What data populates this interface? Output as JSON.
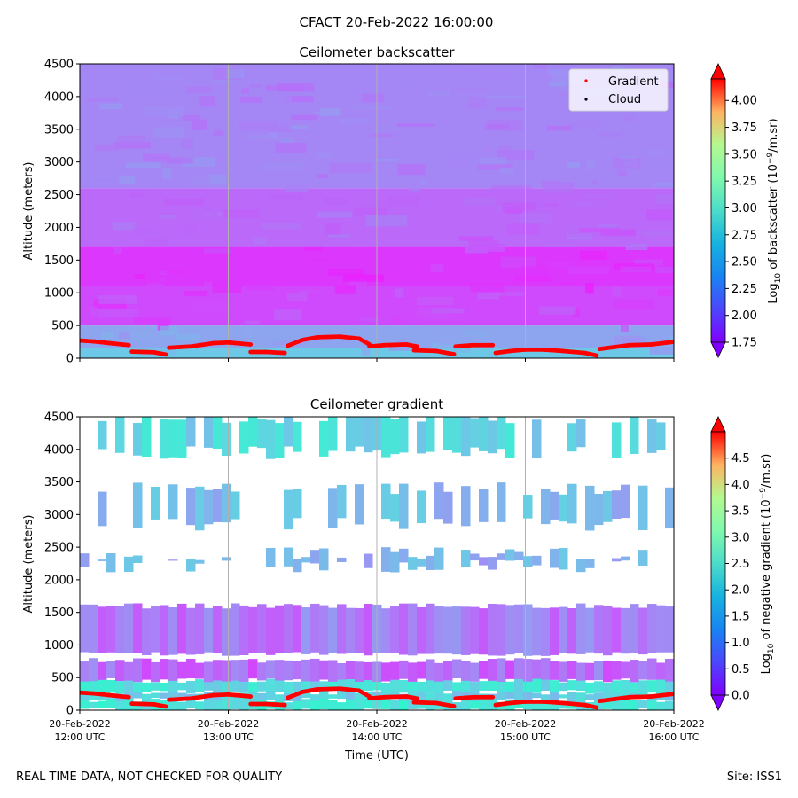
{
  "figure": {
    "title": "CFACT 20-Feb-2022 16:00:00",
    "footer_left": "REAL TIME DATA, NOT CHECKED FOR QUALITY",
    "footer_right": "Site: ISS1",
    "xlabel": "Time (UTC)",
    "time_ticks": [
      {
        "date": "20-Feb-2022",
        "time": "12:00 UTC"
      },
      {
        "date": "20-Feb-2022",
        "time": "13:00 UTC"
      },
      {
        "date": "20-Feb-2022",
        "time": "14:00 UTC"
      },
      {
        "date": "20-Feb-2022",
        "time": "15:00 UTC"
      },
      {
        "date": "20-Feb-2022",
        "time": "16:00 UTC"
      }
    ]
  },
  "colors": {
    "gradient_marker": "#ff0000",
    "cloud_marker": "#000000",
    "grid": "#b0b0b0"
  },
  "chart_data": [
    {
      "type": "heatmap",
      "title": "Ceilometer backscatter",
      "ylabel": "Altitude (meters)",
      "ylim": [
        0,
        4500
      ],
      "yticks": [
        "0",
        "500",
        "1000",
        "1500",
        "2000",
        "2500",
        "3000",
        "3500",
        "4000",
        "4500"
      ],
      "xlim_hours": [
        12,
        16
      ],
      "colorbar": {
        "label_prefix": "Log",
        "label_sub": "10",
        "label_main": " of backscatter (10",
        "label_sup": "−9",
        "label_end": "/m.sr)",
        "range": [
          1.75,
          4.2
        ],
        "ticks": [
          "1.75",
          "2.00",
          "2.25",
          "2.50",
          "2.75",
          "3.00",
          "3.25",
          "3.50",
          "3.75",
          "4.00"
        ]
      },
      "legend": {
        "location": "top-right",
        "entries": [
          {
            "label": "Gradient",
            "color": "#ff0000"
          },
          {
            "label": "Cloud",
            "color": "#000000"
          }
        ]
      },
      "layers": [
        {
          "alt_range": [
            0,
            150
          ],
          "value": 2.45
        },
        {
          "alt_range": [
            150,
            500
          ],
          "value": 2.3
        },
        {
          "alt_range": [
            500,
            1100
          ],
          "value": 1.98
        },
        {
          "alt_range": [
            1100,
            1700
          ],
          "value": 1.92
        },
        {
          "alt_range": [
            1700,
            2600
          ],
          "value": 2.08
        },
        {
          "alt_range": [
            2600,
            4500
          ],
          "value": 2.18
        }
      ]
    },
    {
      "type": "heatmap",
      "title": "Ceilometer gradient",
      "ylabel": "Altitude (meters)",
      "ylim": [
        0,
        4500
      ],
      "yticks": [
        "0",
        "500",
        "1000",
        "1500",
        "2000",
        "2500",
        "3000",
        "3500",
        "4000",
        "4500"
      ],
      "xlim_hours": [
        12,
        16
      ],
      "colorbar": {
        "label_prefix": "Log",
        "label_sub": "10",
        "label_main": " of negative gradient (10",
        "label_sup": "−9",
        "label_end": "/m.sr)",
        "range": [
          0,
          5
        ],
        "ticks": [
          "0.0",
          "0.5",
          "1.0",
          "1.5",
          "2.0",
          "2.5",
          "3.0",
          "3.5",
          "4.0",
          "4.5"
        ]
      },
      "layers": [
        {
          "alt_range": [
            0,
            160
          ],
          "value": 1.8
        },
        {
          "alt_range": [
            160,
            280
          ],
          "value": 1.5
        },
        {
          "alt_range": [
            280,
            460
          ],
          "value": 1.7
        },
        {
          "alt_range": [
            460,
            760
          ],
          "value": 0.7
        },
        {
          "alt_range": [
            860,
            1600
          ],
          "value": 0.8
        },
        {
          "alt_range": [
            2200,
            2400
          ],
          "value": 1.2
        },
        {
          "alt_range": [
            2850,
            3400
          ],
          "value": 1.3
        },
        {
          "alt_range": [
            3950,
            4500
          ],
          "value": 1.6
        }
      ]
    }
  ],
  "gradient_height_series": {
    "unit": "meters",
    "segments": [
      [
        [
          12.0,
          270
        ],
        [
          12.1,
          255
        ],
        [
          12.2,
          230
        ],
        [
          12.33,
          200
        ]
      ],
      [
        [
          12.35,
          100
        ],
        [
          12.5,
          90
        ],
        [
          12.58,
          55
        ]
      ],
      [
        [
          12.6,
          160
        ],
        [
          12.75,
          180
        ],
        [
          12.9,
          230
        ],
        [
          13.0,
          240
        ],
        [
          13.15,
          210
        ]
      ],
      [
        [
          13.15,
          95
        ],
        [
          13.25,
          95
        ],
        [
          13.38,
          80
        ]
      ],
      [
        [
          13.4,
          190
        ],
        [
          13.5,
          280
        ],
        [
          13.6,
          320
        ],
        [
          13.75,
          330
        ],
        [
          13.88,
          300
        ],
        [
          13.95,
          210
        ]
      ],
      [
        [
          13.95,
          180
        ],
        [
          14.05,
          200
        ],
        [
          14.2,
          210
        ],
        [
          14.27,
          180
        ]
      ],
      [
        [
          14.25,
          120
        ],
        [
          14.4,
          110
        ],
        [
          14.52,
          60
        ]
      ],
      [
        [
          14.53,
          180
        ],
        [
          14.65,
          200
        ],
        [
          14.78,
          200
        ]
      ],
      [
        [
          14.8,
          80
        ],
        [
          14.9,
          110
        ],
        [
          15.0,
          130
        ],
        [
          15.12,
          130
        ],
        [
          15.25,
          110
        ],
        [
          15.4,
          80
        ],
        [
          15.48,
          40
        ]
      ],
      [
        [
          15.5,
          140
        ],
        [
          15.6,
          170
        ],
        [
          15.7,
          200
        ],
        [
          15.85,
          210
        ],
        [
          16.0,
          250
        ]
      ]
    ]
  }
}
